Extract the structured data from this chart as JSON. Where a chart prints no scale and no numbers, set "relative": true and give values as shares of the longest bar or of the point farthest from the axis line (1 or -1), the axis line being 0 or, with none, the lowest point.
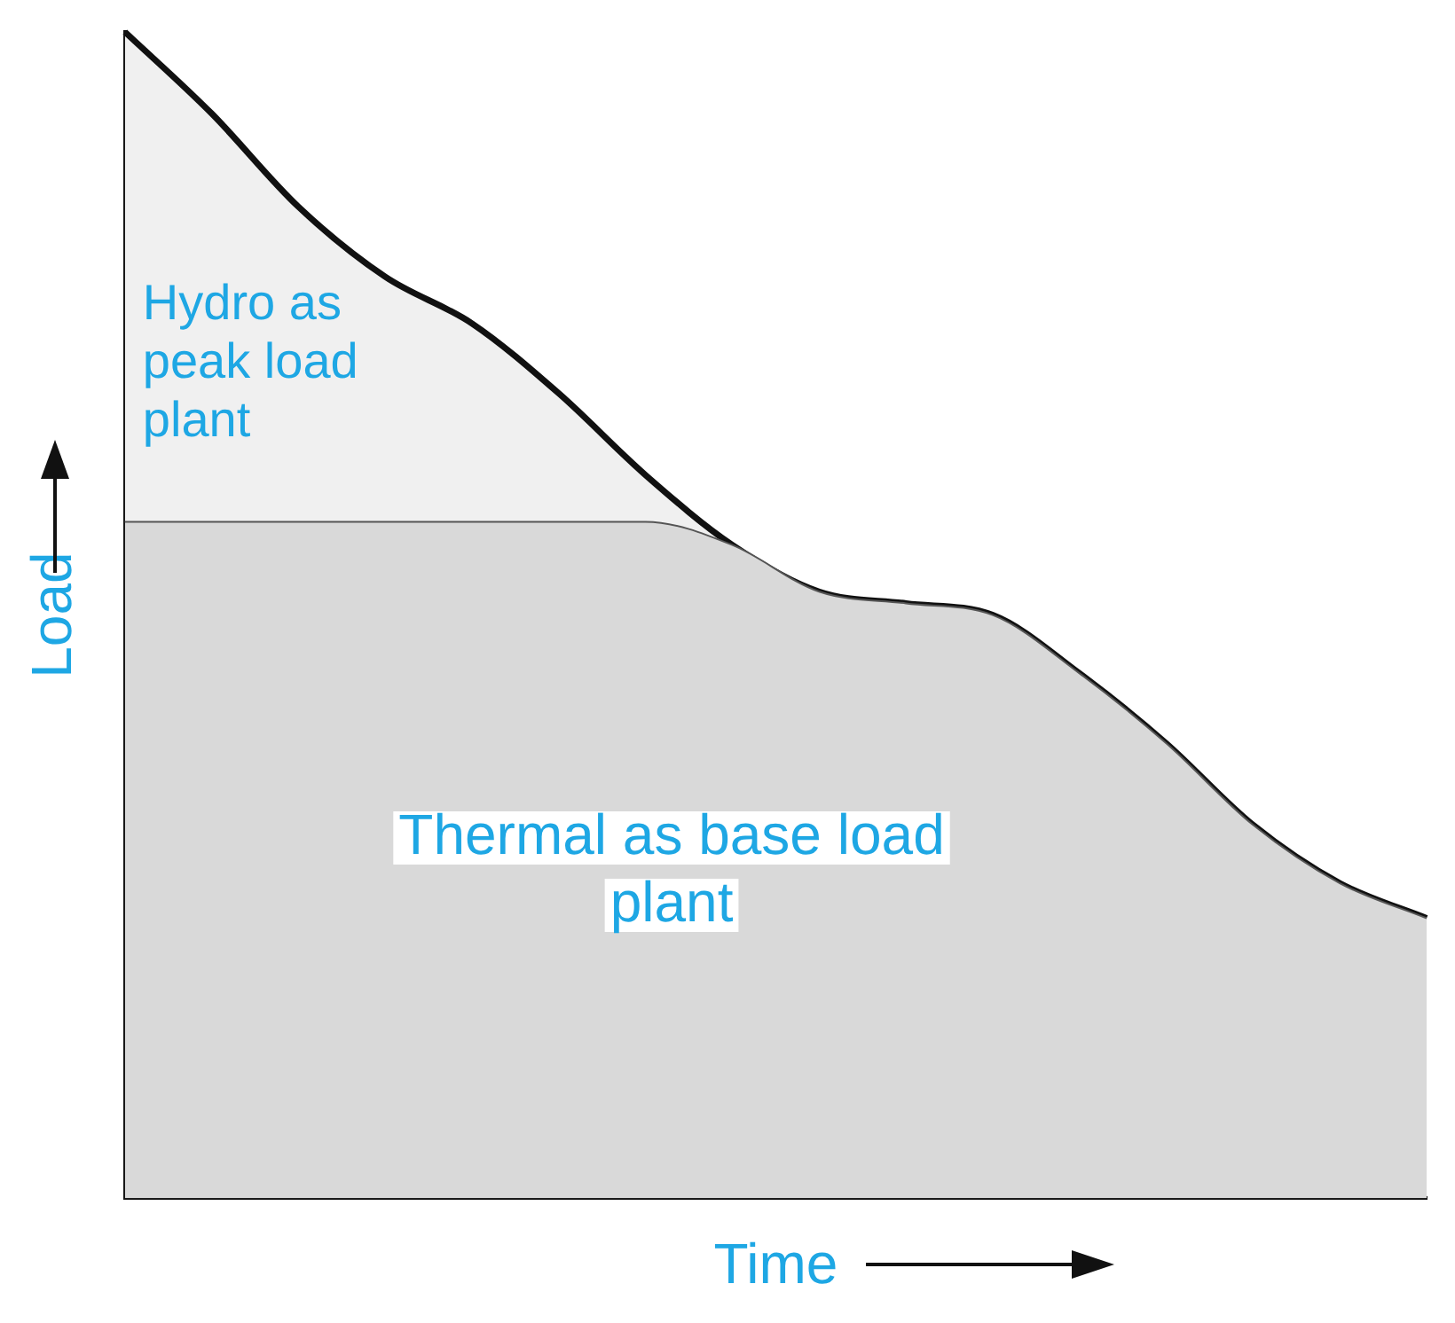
{
  "chart_data": {
    "type": "area",
    "relative": true,
    "stacked": true,
    "xlabel": "Time",
    "ylabel": "Load",
    "categories": [
      null,
      null,
      null,
      null,
      null,
      null,
      null,
      null,
      null,
      null,
      null,
      null,
      null,
      null,
      null,
      null
    ],
    "series": [
      {
        "name": "Thermal as base load plant",
        "color": "#d9d9d9",
        "values": [
          0.58,
          0.58,
          0.58,
          0.58,
          0.58,
          0.58,
          0.58,
          0.56,
          0.52,
          0.51,
          0.5,
          0.45,
          0.39,
          0.32,
          0.27,
          0.24
        ]
      },
      {
        "name": "Hydro as peak load plant",
        "color": "#f0f0f0",
        "values": [
          0.42,
          0.35,
          0.27,
          0.21,
          0.17,
          0.11,
          0.04,
          0,
          0,
          0,
          0,
          0,
          0,
          0,
          0,
          0
        ]
      }
    ],
    "grid": false,
    "legend": false
  }
}
